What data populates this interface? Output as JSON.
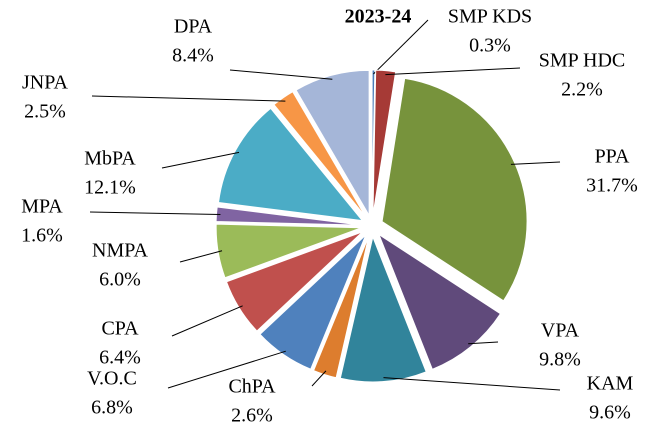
{
  "chart_data": {
    "type": "pie",
    "title": "2023-24",
    "categories": [
      "SMP KDS",
      "SMP HDC",
      "PPA",
      "VPA",
      "KAM",
      "ChPA",
      "V.O.C",
      "CPA",
      "NMPA",
      "MPA",
      "MbPA",
      "JNPA",
      "DPA"
    ],
    "values": [
      0.3,
      2.2,
      31.7,
      9.8,
      9.6,
      2.6,
      6.8,
      6.4,
      6.0,
      1.6,
      12.1,
      2.5,
      8.4
    ],
    "value_labels": [
      "0.3%",
      "2.2%",
      "31.7%",
      "9.8%",
      "9.6%",
      "2.6%",
      "6.8%",
      "6.4%",
      "6.0%",
      "1.6%",
      "12.1%",
      "2.5%",
      "8.4%"
    ],
    "colors": [
      "#4a7ebb",
      "#a63a36",
      "#77933c",
      "#604a7b",
      "#31849b",
      "#dd7d2e",
      "#4f81bd",
      "#c0504d",
      "#9bbb59",
      "#8064a2",
      "#4bacc6",
      "#f79646",
      "#a5b6d8"
    ]
  }
}
